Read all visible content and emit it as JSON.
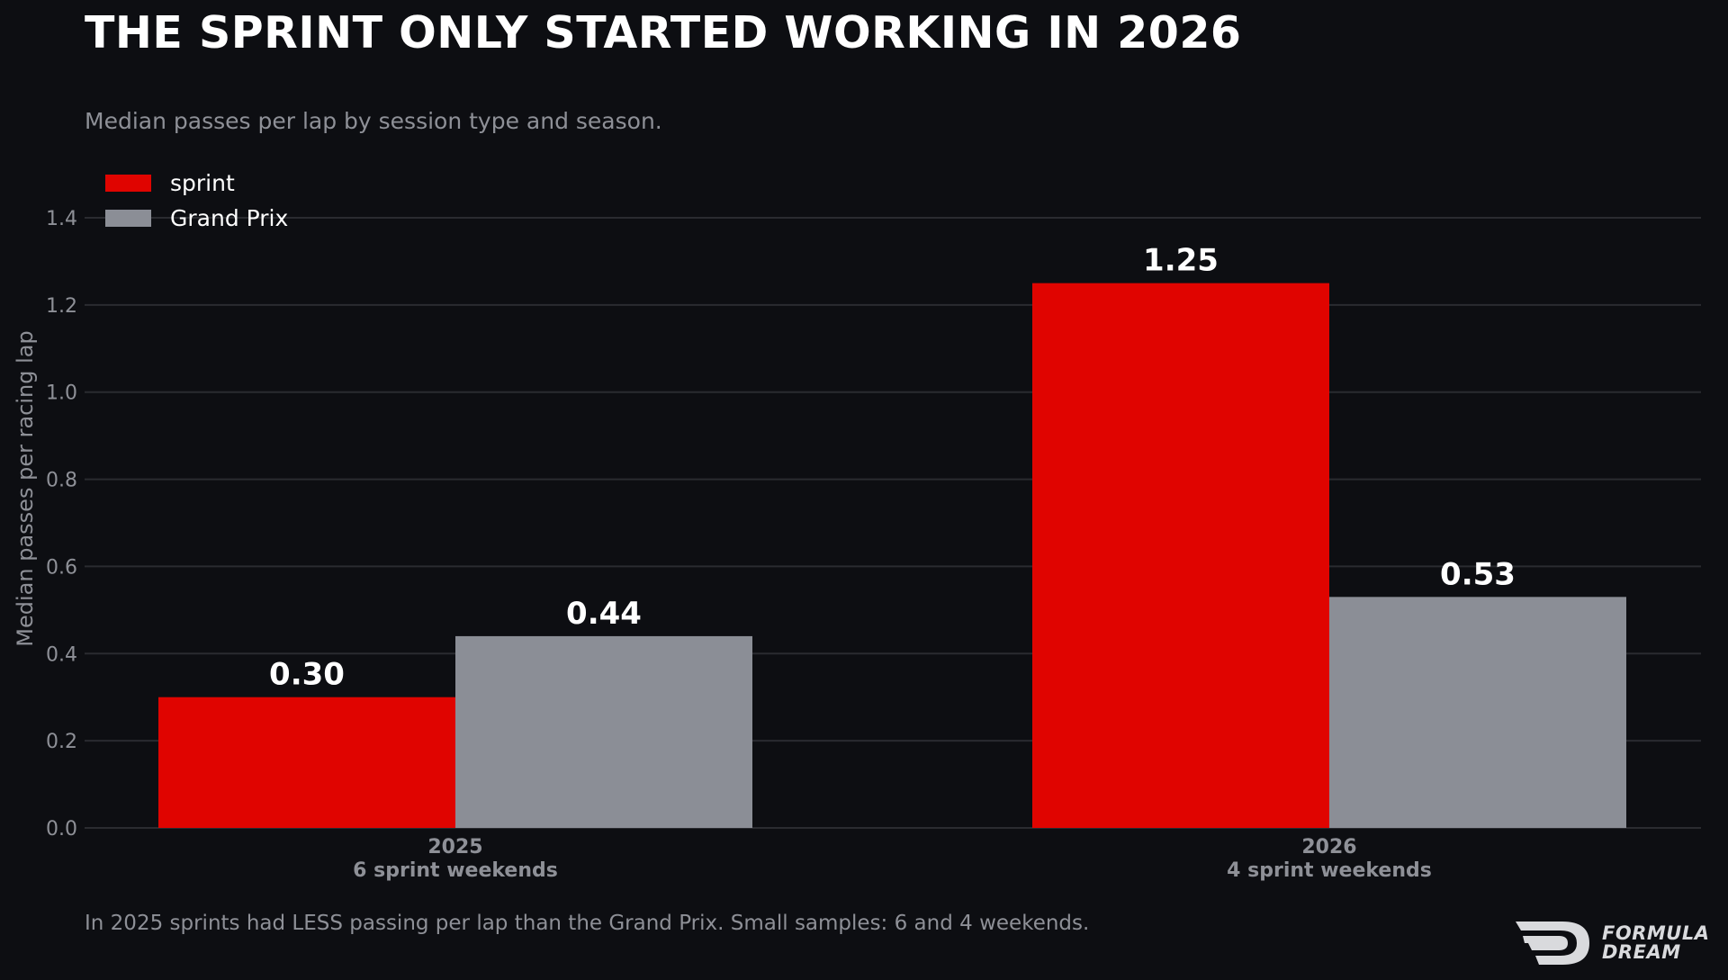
{
  "header": {
    "title": "THE SPRINT ONLY STARTED WORKING IN 2026",
    "subtitle": "Median passes per lap by session type and season."
  },
  "footer": {
    "note": "In 2025 sprints had LESS passing per lap than the Grand Prix. Small samples: 6 and 4 weekends.",
    "logo_line1": "FORMULA",
    "logo_line2": "DREAM"
  },
  "colors": {
    "background": "#0d0e12",
    "sprint": "#e00400",
    "grand_prix": "#8b8e96",
    "grid": "#2a2b30",
    "muted_text": "#8e9097"
  },
  "chart_data": {
    "type": "bar",
    "categories": [
      {
        "year": "2025",
        "detail": "6 sprint weekends"
      },
      {
        "year": "2026",
        "detail": "4 sprint weekends"
      }
    ],
    "series": [
      {
        "name": "sprint",
        "color": "#e00400",
        "values": [
          0.3,
          1.25
        ],
        "labels": [
          "0.30",
          "1.25"
        ]
      },
      {
        "name": "Grand Prix",
        "color": "#8b8e96",
        "values": [
          0.44,
          0.53
        ],
        "labels": [
          "0.44",
          "0.53"
        ]
      }
    ],
    "ylabel": "Median passes per racing lap",
    "ylim": [
      0,
      1.4
    ],
    "yticks": [
      "0.0",
      "0.2",
      "0.4",
      "0.6",
      "0.8",
      "1.0",
      "1.2",
      "1.4"
    ],
    "grid": true,
    "legend_position": "top-left"
  }
}
